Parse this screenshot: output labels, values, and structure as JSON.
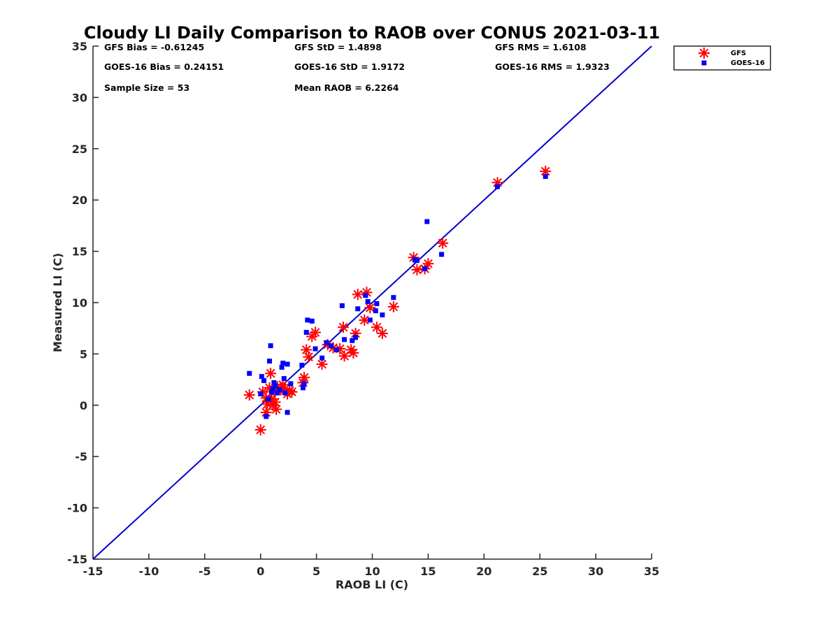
{
  "chart_data": {
    "type": "scatter",
    "title": "Cloudy LI Daily Comparison to RAOB over CONUS 2021-03-11",
    "xlabel": "RAOB LI (C)",
    "ylabel": "Measured LI (C)",
    "xlim": [
      -15,
      35
    ],
    "ylim": [
      -15,
      35
    ],
    "xticks": [
      "-15",
      "-10",
      "-5",
      "0",
      "5",
      "10",
      "15",
      "20",
      "25",
      "30",
      "35"
    ],
    "yticks": [
      "-15",
      "-10",
      "-5",
      "0",
      "5",
      "10",
      "15",
      "20",
      "25",
      "30",
      "35"
    ],
    "grid": false,
    "legend_position": "outside-top-right",
    "stats": [
      "GFS Bias = -0.61245",
      "GFS StD = 1.4898",
      "GFS RMS = 1.6108",
      "GOES-16 Bias = 0.24151",
      "GOES-16 StD = 1.9172",
      "GOES-16 RMS = 1.9323",
      "Sample Size = 53",
      "Mean RAOB = 6.2264"
    ],
    "reference_line": {
      "from": [
        -15,
        -15
      ],
      "to": [
        35,
        35
      ],
      "color": "#0000cc"
    },
    "series": [
      {
        "name": "GFS",
        "marker": "asterisk",
        "color": "#ff0000",
        "points": [
          [
            -1,
            1
          ],
          [
            0,
            -2.4
          ],
          [
            0.2,
            1.3
          ],
          [
            0.5,
            0.7
          ],
          [
            0.5,
            -0.7
          ],
          [
            0.6,
            0.1
          ],
          [
            0.8,
            1.7
          ],
          [
            0.9,
            3.1
          ],
          [
            1,
            0.6
          ],
          [
            1.1,
            0
          ],
          [
            1.2,
            1.4
          ],
          [
            1.3,
            0.3
          ],
          [
            1.4,
            -0.4
          ],
          [
            1.5,
            1.8
          ],
          [
            1.8,
            1.5
          ],
          [
            2,
            2
          ],
          [
            2.2,
            1.6
          ],
          [
            2.4,
            1.1
          ],
          [
            2.6,
            1.4
          ],
          [
            2.8,
            1.3
          ],
          [
            3.8,
            2.2
          ],
          [
            3.9,
            2.7
          ],
          [
            4.1,
            5.4
          ],
          [
            4.3,
            4.7
          ],
          [
            4.6,
            6.7
          ],
          [
            4.9,
            7.1
          ],
          [
            5.5,
            4
          ],
          [
            6,
            5.9
          ],
          [
            6.5,
            5.6
          ],
          [
            7.1,
            5.5
          ],
          [
            7.4,
            7.6
          ],
          [
            7.5,
            4.8
          ],
          [
            8.1,
            5.4
          ],
          [
            8.3,
            5.1
          ],
          [
            8.5,
            7
          ],
          [
            8.7,
            10.8
          ],
          [
            9.3,
            8.3
          ],
          [
            9.5,
            11
          ],
          [
            9.8,
            9.5
          ],
          [
            10.4,
            7.6
          ],
          [
            10.9,
            7
          ],
          [
            11.9,
            9.6
          ],
          [
            13.7,
            14.4
          ],
          [
            14.0,
            13.2
          ],
          [
            14.7,
            13.3
          ],
          [
            15.0,
            13.8
          ],
          [
            16.3,
            15.8
          ],
          [
            21.2,
            21.7
          ],
          [
            25.5,
            22.8
          ]
        ]
      },
      {
        "name": "GOES-16",
        "marker": "square",
        "color": "#0000ff",
        "points": [
          [
            -1,
            3.1
          ],
          [
            0,
            1.1
          ],
          [
            0.1,
            2.8
          ],
          [
            0.3,
            2.4
          ],
          [
            0.5,
            -1.1
          ],
          [
            0.7,
            0.6
          ],
          [
            0.8,
            4.3
          ],
          [
            0.9,
            5.8
          ],
          [
            1,
            1.3
          ],
          [
            1.1,
            1.6
          ],
          [
            1.2,
            2.2
          ],
          [
            1.3,
            1.9
          ],
          [
            1.5,
            1.2
          ],
          [
            1.7,
            1.5
          ],
          [
            1.9,
            3.7
          ],
          [
            2,
            4.1
          ],
          [
            2.1,
            2.6
          ],
          [
            2.2,
            1.2
          ],
          [
            2.4,
            4
          ],
          [
            2.4,
            -0.7
          ],
          [
            2.7,
            2.1
          ],
          [
            3.7,
            3.9
          ],
          [
            3.8,
            1.7
          ],
          [
            3.9,
            2.1
          ],
          [
            4.1,
            7.1
          ],
          [
            4.2,
            8.3
          ],
          [
            4.6,
            8.2
          ],
          [
            4.9,
            5.5
          ],
          [
            5.5,
            4.6
          ],
          [
            5.9,
            6.1
          ],
          [
            6.3,
            5.8
          ],
          [
            6.8,
            5.4
          ],
          [
            7.3,
            9.7
          ],
          [
            7.5,
            6.4
          ],
          [
            8.2,
            6.3
          ],
          [
            8.5,
            6.6
          ],
          [
            8.7,
            9.4
          ],
          [
            9.4,
            10.7
          ],
          [
            9.6,
            10.1
          ],
          [
            9.8,
            8.3
          ],
          [
            10.3,
            9.2
          ],
          [
            10.4,
            9.9
          ],
          [
            10.9,
            8.8
          ],
          [
            11.9,
            10.5
          ],
          [
            13.8,
            14.2
          ],
          [
            14.0,
            14.1
          ],
          [
            14.7,
            13.3
          ],
          [
            14.9,
            17.9
          ],
          [
            16.2,
            14.7
          ],
          [
            21.2,
            21.3
          ],
          [
            25.5,
            22.3
          ]
        ]
      }
    ]
  }
}
